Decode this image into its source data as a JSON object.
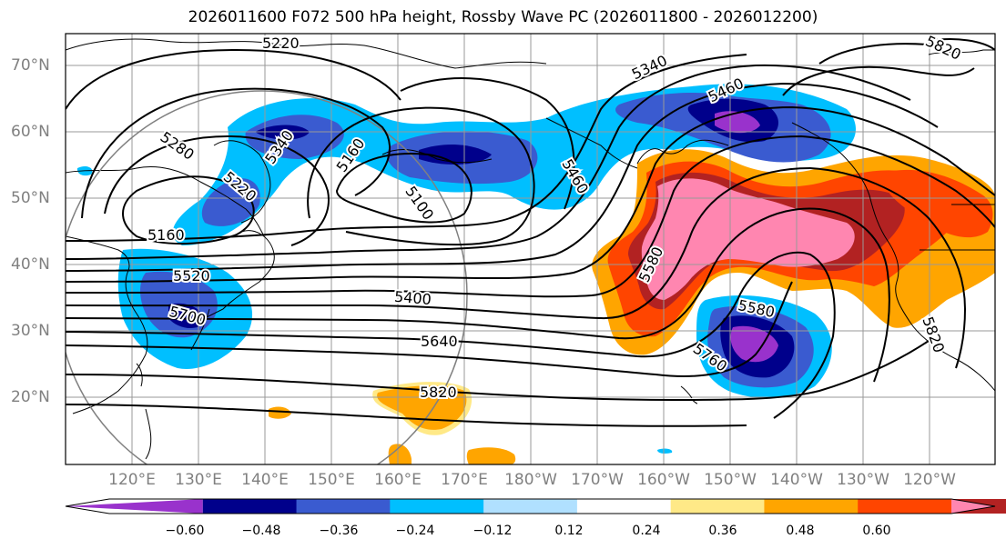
{
  "title": "2026011600 F072 500 hPa height, Rossby Wave PC (2026011800 - 2026012200)",
  "lat_labels": [
    "70°N",
    "60°N",
    "50°N",
    "40°N",
    "30°N",
    "20°N"
  ],
  "lon_labels": [
    "120°E",
    "130°E",
    "140°E",
    "150°E",
    "160°E",
    "170°E",
    "180°W",
    "170°W",
    "160°W",
    "150°W",
    "140°W",
    "130°W",
    "120°W"
  ],
  "contour_labels": [
    "5220",
    "5340",
    "5460",
    "5820",
    "5280",
    "5340",
    "5160",
    "5220",
    "5160",
    "5100",
    "5460",
    "5580",
    "5520",
    "5700",
    "5400",
    "5640",
    "5820",
    "5580",
    "5760",
    "5820"
  ],
  "colorbar": {
    "ticks": [
      "−0.60",
      "−0.48",
      "−0.36",
      "−0.24",
      "−0.12",
      "0.12",
      "0.24",
      "0.36",
      "0.48",
      "0.60"
    ],
    "colors": [
      "#9932cc",
      "#00008b",
      "#3a5bd0",
      "#00bfff",
      "#b0e0ff",
      "#ffffff",
      "#ffe987",
      "#ffa500",
      "#ff4500",
      "#b22222",
      "#ff86b0"
    ]
  }
}
